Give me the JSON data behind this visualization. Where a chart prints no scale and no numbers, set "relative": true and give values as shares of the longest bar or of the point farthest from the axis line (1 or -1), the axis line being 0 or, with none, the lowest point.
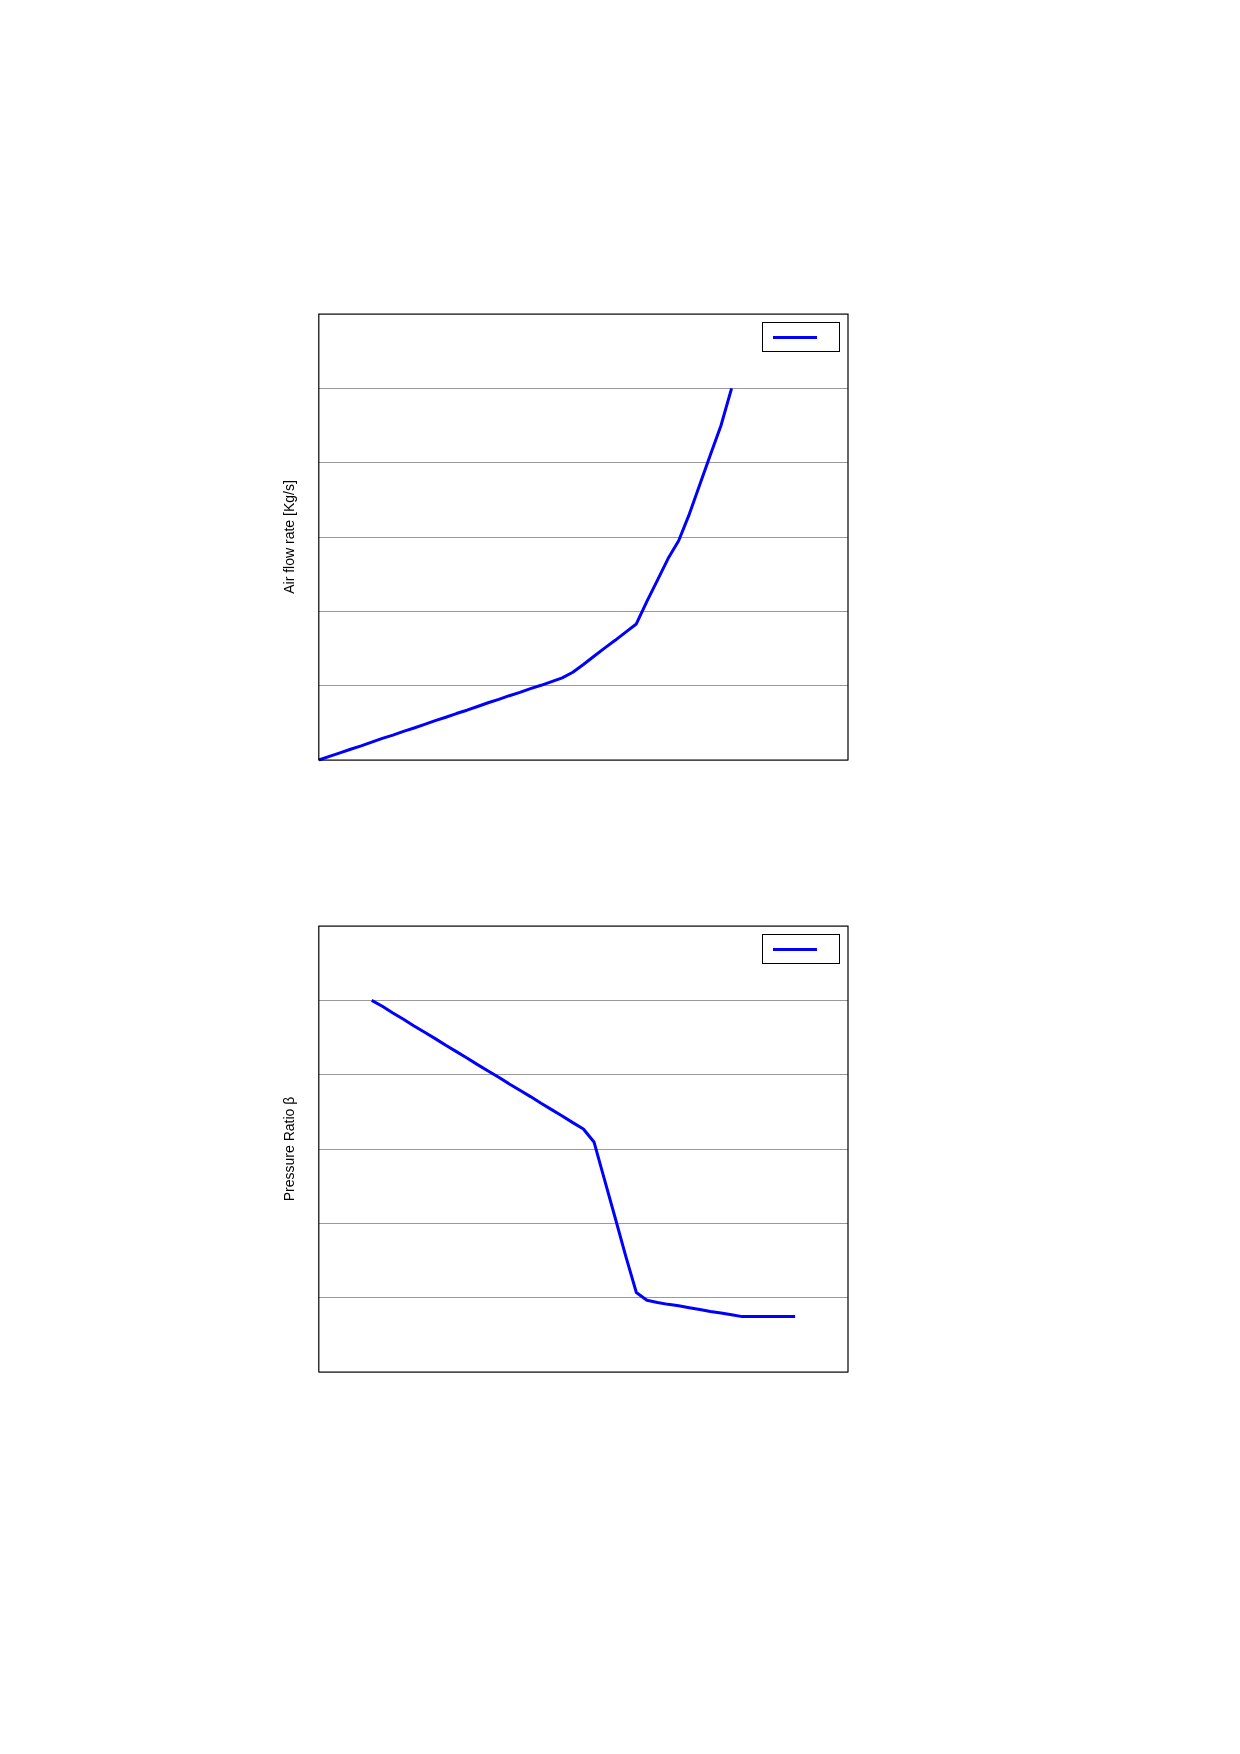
{
  "chart_data": [
    {
      "type": "line",
      "ylabel": "Air flow rate [Kg/s]",
      "relative": true,
      "grid": "y",
      "tick_labels": false,
      "categories": [
        null,
        null,
        null,
        null,
        null,
        null,
        null,
        null,
        null,
        null,
        null,
        null,
        null,
        null,
        null,
        null,
        null,
        null,
        null,
        null,
        null,
        null,
        null,
        null,
        null,
        null,
        null,
        null,
        null,
        null,
        null,
        null,
        null,
        null,
        null,
        null,
        null,
        null,
        null,
        null,
        null,
        null,
        null,
        null,
        null,
        null,
        null,
        null,
        null,
        null,
        null
      ],
      "series": [
        {
          "color": "#0000ff",
          "values": [
            0,
            0.0096,
            0.019,
            0.029,
            0.038,
            0.048,
            0.058,
            0.067,
            0.077,
            0.086,
            0.096,
            0.106,
            0.115,
            0.125,
            0.134,
            0.144,
            0.154,
            0.163,
            0.173,
            0.182,
            0.192,
            0.201,
            0.211,
            0.221,
            0.236,
            0.257,
            0.279,
            0.301,
            0.322,
            0.344,
            0.366,
            0.427,
            0.484,
            0.542,
            0.59,
            0.661,
            0.741,
            0.821,
            0.9,
            1,
            null,
            null,
            null,
            null,
            null,
            null,
            null,
            null,
            null,
            null,
            null
          ]
        }
      ]
    },
    {
      "type": "line",
      "ylabel": "Pressure Ratio β",
      "relative": true,
      "grid": "y",
      "tick_labels": false,
      "categories": [
        null,
        null,
        null,
        null,
        null,
        null,
        null,
        null,
        null,
        null,
        null,
        null,
        null,
        null,
        null,
        null,
        null,
        null,
        null,
        null,
        null,
        null,
        null,
        null,
        null,
        null,
        null,
        null,
        null,
        null,
        null,
        null,
        null,
        null,
        null,
        null,
        null,
        null,
        null,
        null,
        null,
        null,
        null,
        null,
        null,
        null,
        null,
        null,
        null,
        null,
        null
      ],
      "series": [
        {
          "color": "#0000ff",
          "values": [
            null,
            null,
            null,
            null,
            null,
            1,
            0.984,
            0.966,
            0.949,
            0.931,
            0.914,
            0.897,
            0.879,
            0.862,
            0.845,
            0.827,
            0.81,
            0.793,
            0.775,
            0.758,
            0.741,
            0.723,
            0.706,
            0.689,
            0.671,
            0.654,
            0.619,
            0.517,
            0.415,
            0.312,
            0.214,
            0.193,
            0.187,
            0.182,
            0.178,
            0.173,
            0.168,
            0.163,
            0.159,
            0.154,
            0.149,
            0.149,
            0.149,
            0.149,
            0.149,
            0.149,
            null,
            null,
            null,
            null,
            null
          ]
        }
      ]
    }
  ]
}
